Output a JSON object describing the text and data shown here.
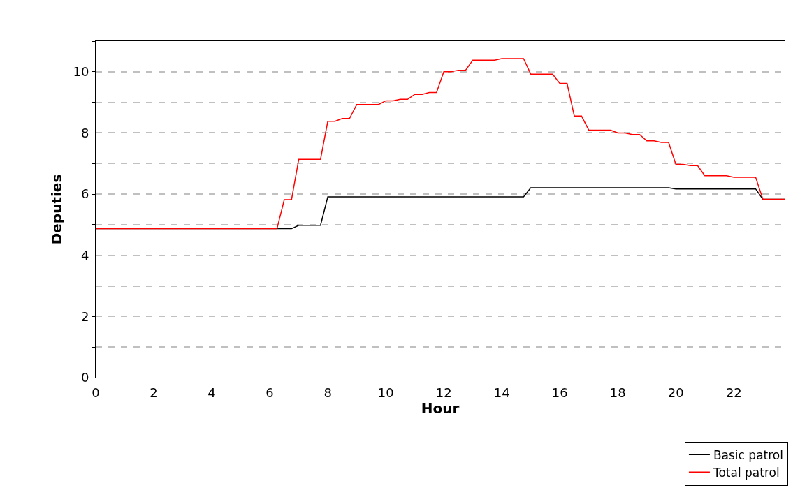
{
  "chart_data": {
    "type": "line",
    "xlabel": "Hour",
    "ylabel": "Deputies",
    "xlim": [
      0,
      23.75
    ],
    "xticks": [
      0,
      2,
      4,
      6,
      8,
      10,
      12,
      14,
      16,
      18,
      20,
      22
    ],
    "ylim": [
      0,
      11
    ],
    "yticks": [
      0,
      {
        "value": 1,
        "label": null
      },
      2,
      {
        "value": 3,
        "label": null
      },
      4,
      {
        "value": 5,
        "label": null
      },
      6,
      {
        "value": 7,
        "label": null
      },
      8,
      {
        "value": 9,
        "label": null
      },
      10,
      {
        "value": 11,
        "label": null
      }
    ],
    "grid": "y",
    "legend": "bottom right",
    "line_style": "solid",
    "marker": "none",
    "series": [
      {
        "name": "Basic patrol",
        "color": "#000000",
        "x": [
          0,
          6.75,
          7,
          7.75,
          8,
          14.75,
          15,
          19.75,
          20,
          22.75,
          23,
          23.75
        ],
        "values": [
          4.87,
          4.87,
          4.98,
          4.98,
          5.91,
          5.91,
          6.21,
          6.21,
          6.17,
          6.17,
          5.83,
          5.83
        ]
      },
      {
        "name": "Total patrol",
        "color": "#ff0000",
        "x": [
          0,
          6.25,
          6.5,
          6.75,
          7,
          7.75,
          8,
          8.25,
          8.5,
          8.75,
          9,
          9.75,
          10,
          10.25,
          10.5,
          10.75,
          11,
          11.25,
          11.5,
          11.75,
          12,
          12.25,
          12.5,
          12.75,
          13,
          13.75,
          14,
          14.75,
          15,
          15.75,
          16,
          16.25,
          16.5,
          16.75,
          17,
          17.75,
          18,
          18.25,
          18.5,
          18.75,
          19,
          19.25,
          19.5,
          19.75,
          20,
          20.25,
          20.5,
          20.75,
          21,
          21.75,
          22,
          22.75,
          23,
          23.75
        ],
        "values": [
          4.87,
          4.87,
          5.82,
          5.82,
          7.14,
          7.14,
          8.38,
          8.38,
          8.47,
          8.47,
          8.93,
          8.93,
          9.05,
          9.05,
          9.1,
          9.1,
          9.26,
          9.26,
          9.32,
          9.32,
          10.0,
          10.0,
          10.05,
          10.05,
          10.38,
          10.38,
          10.43,
          10.43,
          9.92,
          9.92,
          9.62,
          9.62,
          8.55,
          8.55,
          8.09,
          8.09,
          8.0,
          8.0,
          7.95,
          7.95,
          7.74,
          7.74,
          7.69,
          7.69,
          6.97,
          6.97,
          6.93,
          6.93,
          6.6,
          6.6,
          6.55,
          6.55,
          5.83,
          5.83
        ]
      }
    ]
  }
}
